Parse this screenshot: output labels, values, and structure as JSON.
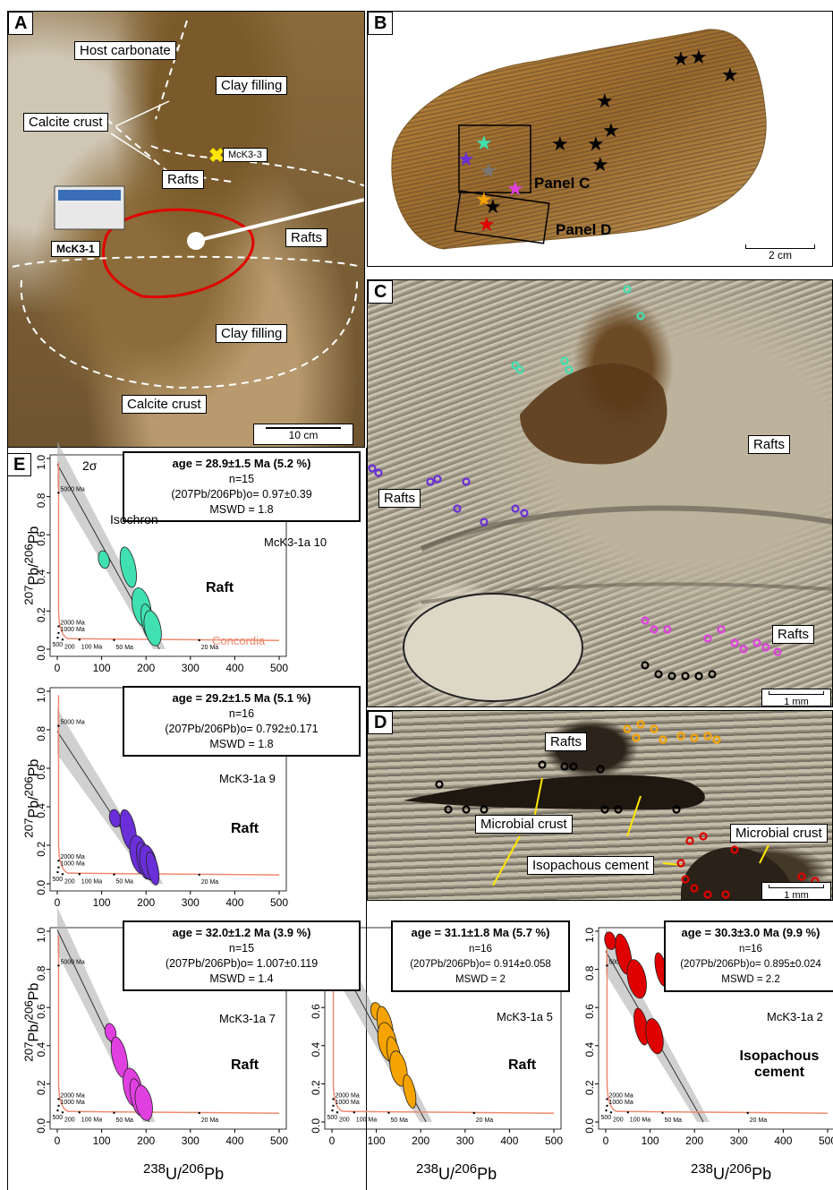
{
  "panels": {
    "a": {
      "letter": "A",
      "labels": {
        "host": "Host carbonate",
        "clay1": "Clay filling",
        "calcite1": "Calcite crust",
        "mck33": "McK3-3",
        "rafts1": "Rafts",
        "mck31": "McK3-1",
        "rafts2": "Rafts",
        "clay2": "Clay filling",
        "calcite2": "Calcite crust"
      },
      "scale": "10 cm"
    },
    "b": {
      "letter": "B",
      "panel_c": "Panel C",
      "panel_d": "Panel D",
      "scale": "2 cm"
    },
    "c": {
      "letter": "C",
      "rafts1": "Rafts",
      "rafts2": "Rafts",
      "rafts3": "Rafts",
      "scale": "1 mm"
    },
    "d": {
      "letter": "D",
      "rafts": "Rafts",
      "microbial1": "Microbial crust",
      "microbial2": "Microbial crust",
      "isopachous": "Isopachous cement",
      "scale": "1 mm"
    },
    "e": {
      "letter": "E",
      "twosigma": "2σ",
      "isochron": "Isochron",
      "concordia": "Concordia"
    }
  },
  "axes": {
    "x_title": "238U/206Pb",
    "y_title": "207Pb/206Pb",
    "x_ticks": [
      "0",
      "100",
      "200",
      "300",
      "400",
      "500"
    ],
    "y_ticks": [
      "0.0",
      "0.2",
      "0.4",
      "0.6",
      "0.8",
      "1.0"
    ],
    "age_marks": [
      "5000 Ma",
      "2000 Ma",
      "1000 Ma",
      "500",
      "200",
      "100 Ma",
      "50 Ma",
      "20 Ma"
    ]
  },
  "plots": [
    {
      "age": "age = 28.9±1.5 Ma (5.2 %)",
      "n": "n=15",
      "initial": "(207Pb/206Pb)o= 0.97±0.39",
      "mswd": "MSWD = 1.8",
      "sample": "McK3-1a 10",
      "lith": "Raft",
      "color": "#40e0b0"
    },
    {
      "age": "age = 29.2±1.5 Ma (5.1 %)",
      "n": "n=16",
      "initial": "(207Pb/206Pb)o= 0.792±0.171",
      "mswd": "MSWD = 1.8",
      "sample": "McK3-1a 9",
      "lith": "Raft",
      "color": "#6a2fd8"
    },
    {
      "age": "age = 32.0±1.2 Ma (3.9 %)",
      "n": "n=15",
      "initial": "(207Pb/206Pb)o= 1.007±0.119",
      "mswd": "MSWD = 1.4",
      "sample": "McK3-1a 7",
      "lith": "Raft",
      "color": "#e040e0"
    },
    {
      "age": "age = 31.1±1.8 Ma (5.7 %)",
      "n": "n=16",
      "initial": "(207Pb/206Pb)o= 0.914±0.058",
      "mswd": "MSWD = 2",
      "sample": "McK3-1a 5",
      "lith": "Raft",
      "color": "#f5a300"
    },
    {
      "age": "age = 30.3±3.0 Ma (9.9 %)",
      "n": "n=16",
      "initial": "(207Pb/206Pb)o= 0.895±0.024",
      "mswd": "MSWD = 2.2",
      "sample": "McK3-1a 2",
      "lith": "Isopachous cement",
      "color": "#e00000"
    }
  ],
  "chart_data": [
    {
      "type": "scatter",
      "series": [
        {
          "name": "McK3-1a 10",
          "x": [
            105,
            160,
            190,
            205,
            215
          ],
          "y": [
            0.47,
            0.43,
            0.22,
            0.14,
            0.11
          ]
        }
      ],
      "xlim": [
        0,
        500
      ],
      "ylim": [
        0,
        1
      ],
      "isochron": {
        "y0": 0.97,
        "xint": 230
      }
    },
    {
      "type": "scatter",
      "series": [
        {
          "name": "McK3-1a 9",
          "x": [
            130,
            160,
            185,
            195,
            205,
            215
          ],
          "y": [
            0.34,
            0.28,
            0.15,
            0.12,
            0.11,
            0.08
          ]
        }
      ],
      "xlim": [
        0,
        500
      ],
      "ylim": [
        0,
        1
      ],
      "isochron": {
        "y0": 0.792,
        "xint": 225
      }
    },
    {
      "type": "scatter",
      "series": [
        {
          "name": "McK3-1a 7",
          "x": [
            120,
            140,
            170,
            180,
            195
          ],
          "y": [
            0.47,
            0.34,
            0.18,
            0.13,
            0.1
          ]
        }
      ],
      "xlim": [
        0,
        500
      ],
      "ylim": [
        0,
        1
      ],
      "isochron": {
        "y0": 1.007,
        "xint": 207
      }
    },
    {
      "type": "scatter",
      "series": [
        {
          "name": "McK3-1a 5",
          "x": [
            100,
            120,
            125,
            140,
            150,
            175
          ],
          "y": [
            0.58,
            0.5,
            0.42,
            0.35,
            0.28,
            0.16
          ]
        }
      ],
      "xlim": [
        0,
        500
      ],
      "ylim": [
        0,
        1
      ],
      "isochron": {
        "y0": 0.914,
        "xint": 212
      }
    },
    {
      "type": "scatter",
      "series": [
        {
          "name": "McK3-1a 2",
          "x": [
            10,
            40,
            70,
            80,
            110,
            125
          ],
          "y": [
            0.95,
            0.88,
            0.75,
            0.5,
            0.45,
            0.8
          ]
        }
      ],
      "xlim": [
        0,
        500
      ],
      "ylim": [
        0,
        1
      ],
      "isochron": {
        "y0": 0.895,
        "xint": 220
      }
    }
  ]
}
